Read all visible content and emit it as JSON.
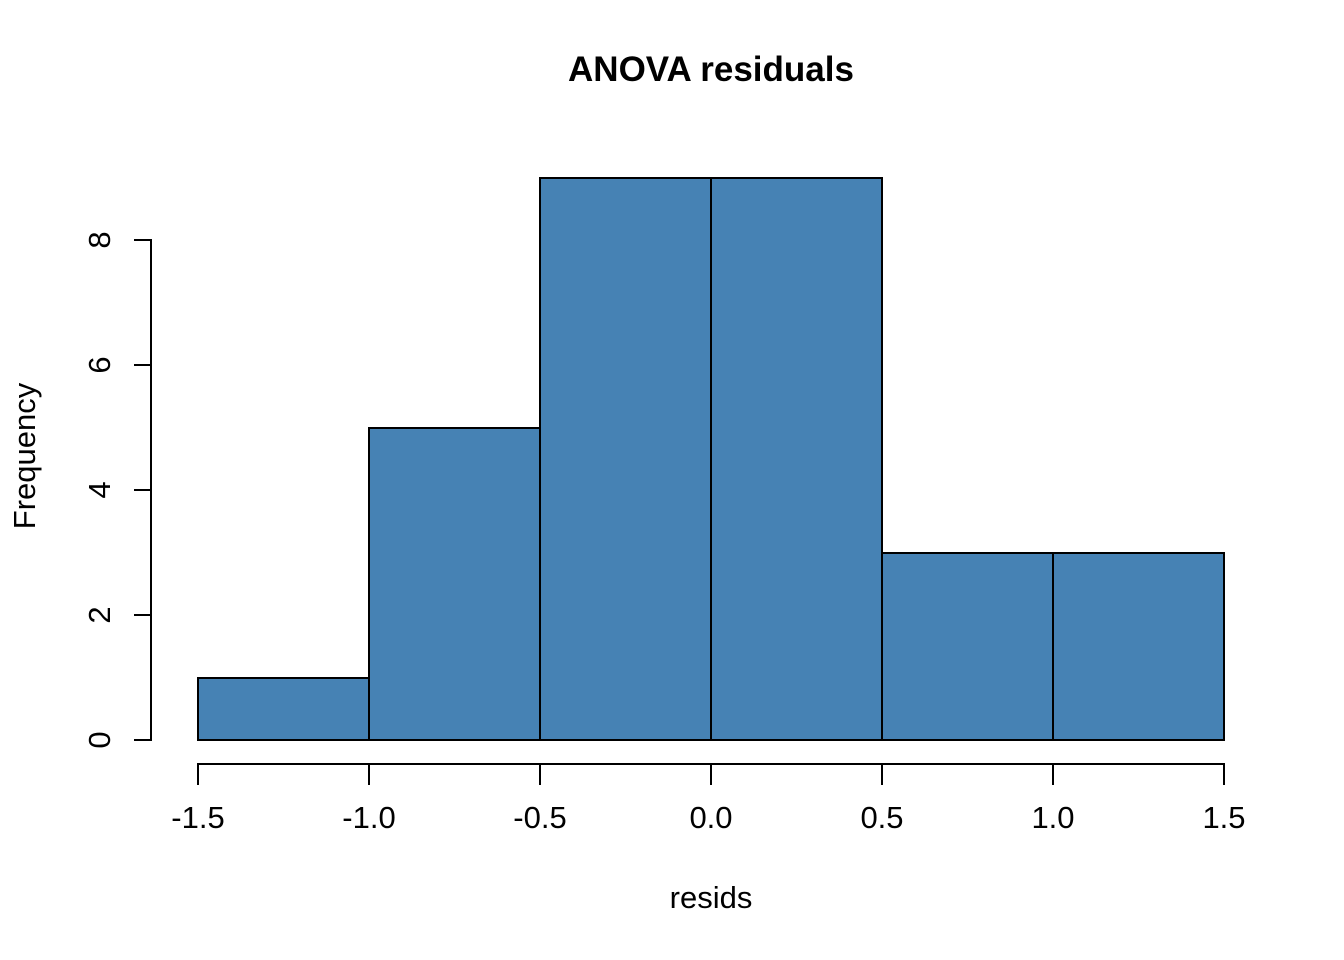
{
  "chart_data": {
    "type": "bar",
    "subtype": "histogram",
    "title": "ANOVA residuals",
    "xlabel": "resids",
    "ylabel": "Frequency",
    "breaks": [
      -1.5,
      -1.0,
      -0.5,
      0.0,
      0.5,
      1.0,
      1.5
    ],
    "counts": [
      1,
      5,
      9,
      9,
      3,
      3
    ],
    "bins": [
      {
        "from": -1.5,
        "to": -1.0,
        "count": 1
      },
      {
        "from": -1.0,
        "to": -0.5,
        "count": 5
      },
      {
        "from": -0.5,
        "to": 0.0,
        "count": 9
      },
      {
        "from": 0.0,
        "to": 0.5,
        "count": 9
      },
      {
        "from": 0.5,
        "to": 1.0,
        "count": 3
      },
      {
        "from": 1.0,
        "to": 1.5,
        "count": 3
      }
    ],
    "xlim": [
      -1.5,
      1.5
    ],
    "ylim": [
      0,
      9
    ],
    "x_ticks": [
      {
        "value": -1.5,
        "label": "-1.5"
      },
      {
        "value": -1.0,
        "label": "-1.0"
      },
      {
        "value": -0.5,
        "label": "-0.5"
      },
      {
        "value": 0.0,
        "label": "0.0"
      },
      {
        "value": 0.5,
        "label": "0.5"
      },
      {
        "value": 1.0,
        "label": "1.0"
      },
      {
        "value": 1.5,
        "label": "1.5"
      }
    ],
    "y_ticks": [
      {
        "value": 0,
        "label": "0"
      },
      {
        "value": 2,
        "label": "2"
      },
      {
        "value": 4,
        "label": "4"
      },
      {
        "value": 6,
        "label": "6"
      },
      {
        "value": 8,
        "label": "8"
      }
    ],
    "grid": false,
    "legend": null,
    "colors": {
      "bar_fill": "#4682B4",
      "bar_border": "#000000",
      "axis": "#000000",
      "text": "#000000",
      "background": "#FFFFFF"
    }
  }
}
